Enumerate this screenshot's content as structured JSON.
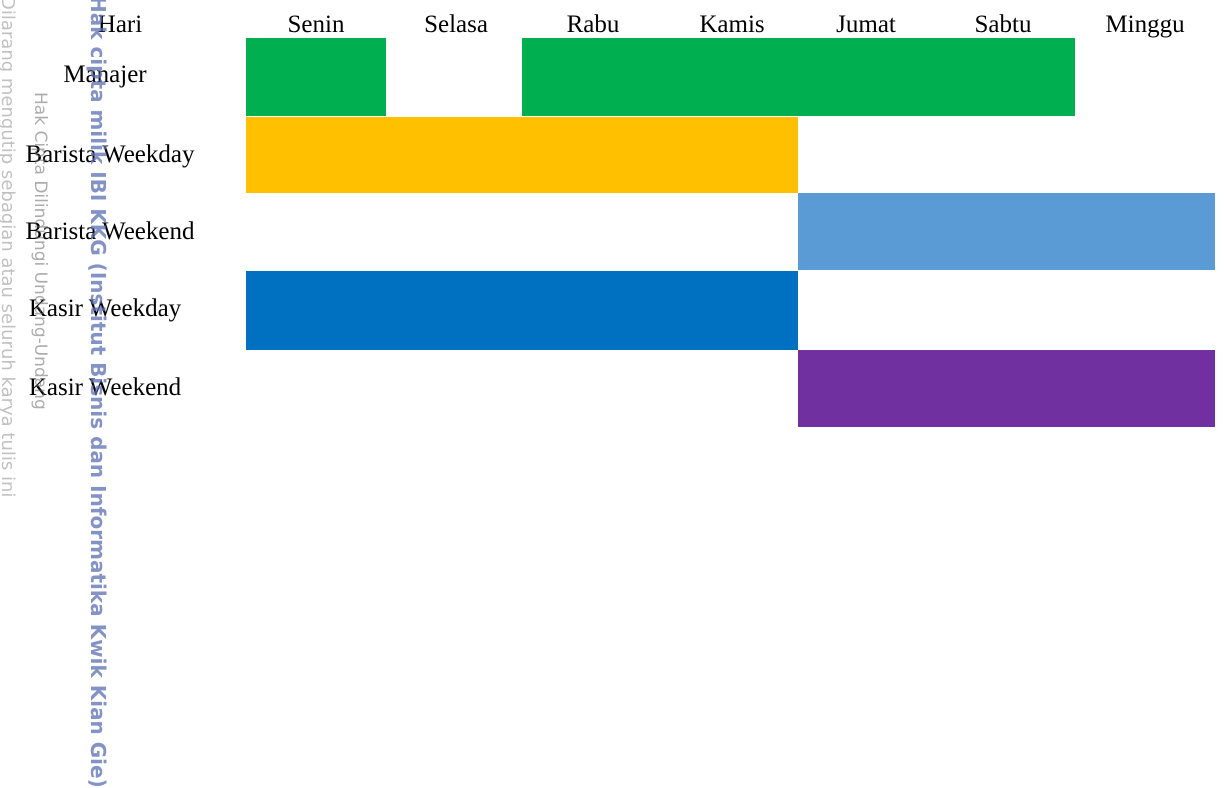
{
  "header": {
    "hari_label": "Hari"
  },
  "days": [
    {
      "label": "Senin"
    },
    {
      "label": "Selasa"
    },
    {
      "label": "Rabu"
    },
    {
      "label": "Kamis"
    },
    {
      "label": "Jumat"
    },
    {
      "label": "Sabtu"
    },
    {
      "label": "Minggu"
    }
  ],
  "roles": [
    {
      "label": "Manajer",
      "color": "#00b050",
      "shifts": [
        [
          "Senin",
          "Senin"
        ],
        [
          "Rabu",
          "Sabtu"
        ]
      ]
    },
    {
      "label": "Barista Weekday",
      "color": "#ffc000",
      "shifts": [
        [
          "Senin",
          "Kamis"
        ]
      ]
    },
    {
      "label": "Barista Weekend",
      "color": "#5b9bd5",
      "shifts": [
        [
          "Jumat",
          "Minggu"
        ]
      ]
    },
    {
      "label": "Kasir Weekday",
      "color": "#0070c0",
      "shifts": [
        [
          "Senin",
          "Kamis"
        ]
      ]
    },
    {
      "label": "Kasir Weekend",
      "color": "#7030a0",
      "shifts": [
        [
          "Jumat",
          "Minggu"
        ]
      ]
    }
  ],
  "watermark": {
    "line1": "Hak cipta milik IBI KKG (Institut Bisnis dan Informatika Kwik Kian Gie)",
    "line2": "Hak Cipta Dilindungi Undang-Undang",
    "line3": "Dilarang mengutip sebagian atau seluruh karya tulis ini"
  }
}
